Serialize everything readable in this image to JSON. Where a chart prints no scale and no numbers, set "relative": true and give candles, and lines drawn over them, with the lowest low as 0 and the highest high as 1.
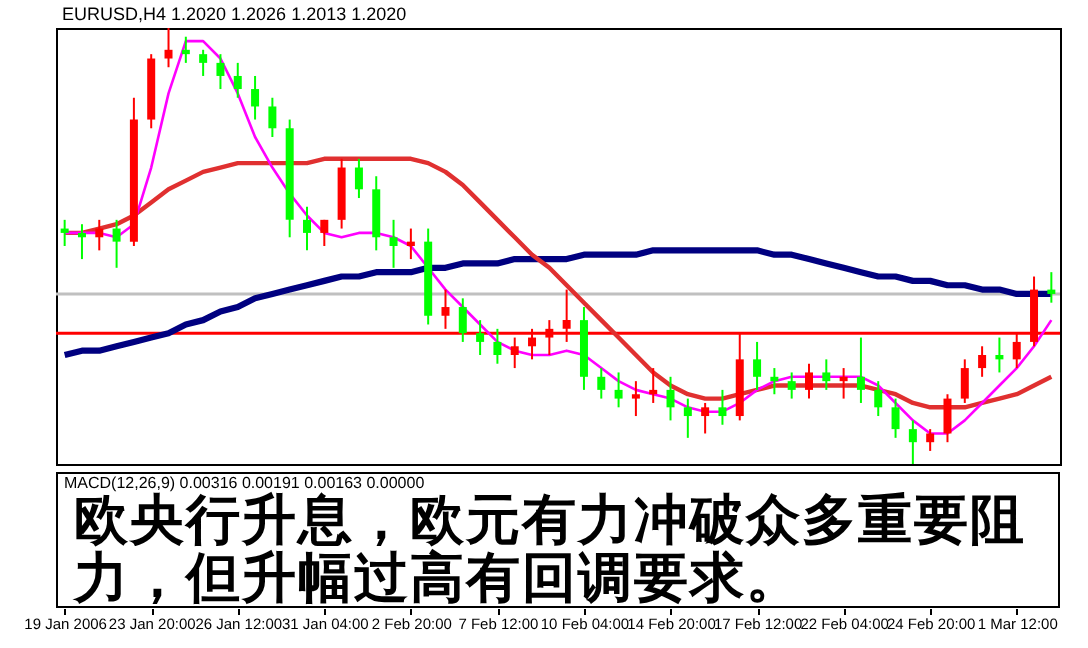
{
  "chart_data": {
    "type": "candlestick",
    "relative": true,
    "annotations": [
      "EURUSD,H4  1.2020 1.2026 1.2013 1.2020",
      "MACD(12,26,9) 0.00316 0.00191 0.00163 0.00000",
      "欧央行升息，欧元有力冲破众多重要阻力，但升幅过高有回调要求。"
    ],
    "categories": [
      "19 Jan 2006",
      null,
      null,
      null,
      null,
      "23 Jan 20:00",
      null,
      null,
      null,
      null,
      "26 Jan 12:00",
      null,
      null,
      null,
      null,
      "31 Jan 04:00",
      null,
      null,
      null,
      null,
      "2 Feb 20:00",
      null,
      null,
      null,
      null,
      "7 Feb 12:00",
      null,
      null,
      null,
      null,
      "10 Feb 04:00",
      null,
      null,
      null,
      null,
      "14 Feb 20:00",
      null,
      null,
      null,
      null,
      "17 Feb 12:00",
      null,
      null,
      null,
      null,
      "22 Feb 04:00",
      null,
      null,
      null,
      null,
      "24 Feb 20:00",
      null,
      null,
      null,
      null,
      "1 Mar 12:00",
      null,
      null
    ],
    "ohlc": [
      [
        0.54,
        0.56,
        0.5,
        0.53
      ],
      [
        0.53,
        0.55,
        0.47,
        0.52
      ],
      [
        0.52,
        0.56,
        0.49,
        0.54
      ],
      [
        0.54,
        0.56,
        0.45,
        0.51
      ],
      [
        0.51,
        0.84,
        0.5,
        0.79
      ],
      [
        0.79,
        0.94,
        0.77,
        0.93
      ],
      [
        0.93,
        1.0,
        0.91,
        0.95
      ],
      [
        0.95,
        0.98,
        0.92,
        0.94
      ],
      [
        0.94,
        0.95,
        0.89,
        0.92
      ],
      [
        0.92,
        0.94,
        0.86,
        0.89
      ],
      [
        0.89,
        0.92,
        0.84,
        0.86
      ],
      [
        0.86,
        0.89,
        0.79,
        0.82
      ],
      [
        0.82,
        0.84,
        0.75,
        0.77
      ],
      [
        0.77,
        0.79,
        0.52,
        0.56
      ],
      [
        0.56,
        0.59,
        0.49,
        0.53
      ],
      [
        0.53,
        0.56,
        0.5,
        0.56
      ],
      [
        0.56,
        0.7,
        0.54,
        0.68
      ],
      [
        0.68,
        0.7,
        0.61,
        0.63
      ],
      [
        0.63,
        0.66,
        0.49,
        0.52
      ],
      [
        0.52,
        0.56,
        0.45,
        0.5
      ],
      [
        0.5,
        0.54,
        0.47,
        0.51
      ],
      [
        0.51,
        0.54,
        0.32,
        0.34
      ],
      [
        0.34,
        0.4,
        0.31,
        0.36
      ],
      [
        0.36,
        0.38,
        0.28,
        0.3
      ],
      [
        0.3,
        0.33,
        0.25,
        0.28
      ],
      [
        0.28,
        0.31,
        0.23,
        0.25
      ],
      [
        0.25,
        0.29,
        0.22,
        0.27
      ],
      [
        0.27,
        0.31,
        0.24,
        0.29
      ],
      [
        0.29,
        0.33,
        0.25,
        0.31
      ],
      [
        0.31,
        0.4,
        0.28,
        0.33
      ],
      [
        0.33,
        0.36,
        0.17,
        0.2
      ],
      [
        0.2,
        0.22,
        0.15,
        0.17
      ],
      [
        0.17,
        0.21,
        0.13,
        0.15
      ],
      [
        0.15,
        0.19,
        0.11,
        0.16
      ],
      [
        0.16,
        0.22,
        0.14,
        0.17
      ],
      [
        0.17,
        0.2,
        0.1,
        0.13
      ],
      [
        0.13,
        0.15,
        0.06,
        0.11
      ],
      [
        0.11,
        0.14,
        0.07,
        0.13
      ],
      [
        0.13,
        0.17,
        0.09,
        0.11
      ],
      [
        0.11,
        0.3,
        0.1,
        0.24
      ],
      [
        0.24,
        0.28,
        0.17,
        0.2
      ],
      [
        0.2,
        0.22,
        0.16,
        0.19
      ],
      [
        0.19,
        0.21,
        0.15,
        0.17
      ],
      [
        0.17,
        0.23,
        0.15,
        0.21
      ],
      [
        0.21,
        0.24,
        0.17,
        0.19
      ],
      [
        0.19,
        0.22,
        0.15,
        0.2
      ],
      [
        0.2,
        0.29,
        0.14,
        0.17
      ],
      [
        0.17,
        0.19,
        0.11,
        0.13
      ],
      [
        0.13,
        0.15,
        0.06,
        0.08
      ],
      [
        0.08,
        0.1,
        0.0,
        0.05
      ],
      [
        0.05,
        0.08,
        0.03,
        0.07
      ],
      [
        0.07,
        0.16,
        0.05,
        0.15
      ],
      [
        0.15,
        0.24,
        0.14,
        0.22
      ],
      [
        0.22,
        0.27,
        0.2,
        0.25
      ],
      [
        0.25,
        0.29,
        0.21,
        0.24
      ],
      [
        0.24,
        0.3,
        0.22,
        0.28
      ],
      [
        0.28,
        0.43,
        0.27,
        0.4
      ],
      [
        0.4,
        0.44,
        0.37,
        0.39
      ]
    ],
    "colors": [
      "#00ff00",
      "#00ff00",
      "#ff0000",
      "#00ff00",
      "#ff0000",
      "#ff0000",
      "#ff0000",
      "#00ff00",
      "#00ff00",
      "#00ff00",
      "#00ff00",
      "#00ff00",
      "#00ff00",
      "#00ff00",
      "#00ff00",
      "#ff0000",
      "#ff0000",
      "#00ff00",
      "#00ff00",
      "#00ff00",
      "#ff0000",
      "#00ff00",
      "#ff0000",
      "#00ff00",
      "#00ff00",
      "#00ff00",
      "#ff0000",
      "#ff0000",
      "#ff0000",
      "#ff0000",
      "#00ff00",
      "#00ff00",
      "#00ff00",
      "#ff0000",
      "#ff0000",
      "#00ff00",
      "#00ff00",
      "#ff0000",
      "#00ff00",
      "#ff0000",
      "#00ff00",
      "#00ff00",
      "#00ff00",
      "#ff0000",
      "#00ff00",
      "#ff0000",
      "#00ff00",
      "#00ff00",
      "#00ff00",
      "#00ff00",
      "#ff0000",
      "#ff0000",
      "#ff0000",
      "#ff0000",
      "#00ff00",
      "#ff0000",
      "#ff0000",
      "#00ff00"
    ],
    "series": [
      {
        "type": "line",
        "color": "#000080",
        "values": [
          0.25,
          0.26,
          0.26,
          0.27,
          0.28,
          0.29,
          0.3,
          0.32,
          0.33,
          0.35,
          0.36,
          0.38,
          0.39,
          0.4,
          0.41,
          0.42,
          0.43,
          0.43,
          0.44,
          0.44,
          0.44,
          0.45,
          0.45,
          0.46,
          0.46,
          0.46,
          0.47,
          0.47,
          0.47,
          0.47,
          0.48,
          0.48,
          0.48,
          0.48,
          0.49,
          0.49,
          0.49,
          0.49,
          0.49,
          0.49,
          0.49,
          0.48,
          0.48,
          0.47,
          0.46,
          0.45,
          0.44,
          0.43,
          0.43,
          0.42,
          0.42,
          0.41,
          0.41,
          0.4,
          0.4,
          0.39,
          0.39,
          0.39
        ]
      },
      {
        "type": "line",
        "color": "#e03030",
        "values": [
          0.53,
          0.53,
          0.54,
          0.55,
          0.57,
          0.6,
          0.63,
          0.65,
          0.67,
          0.68,
          0.69,
          0.69,
          0.69,
          0.69,
          0.69,
          0.7,
          0.7,
          0.7,
          0.7,
          0.7,
          0.7,
          0.69,
          0.67,
          0.64,
          0.6,
          0.56,
          0.52,
          0.48,
          0.45,
          0.41,
          0.37,
          0.33,
          0.29,
          0.25,
          0.21,
          0.18,
          0.16,
          0.15,
          0.15,
          0.16,
          0.17,
          0.18,
          0.18,
          0.18,
          0.18,
          0.18,
          0.18,
          0.17,
          0.16,
          0.14,
          0.13,
          0.13,
          0.13,
          0.14,
          0.15,
          0.16,
          0.18,
          0.2
        ]
      },
      {
        "type": "line",
        "color": "#ff00ff",
        "values": [
          0.53,
          0.53,
          0.53,
          0.52,
          0.55,
          0.68,
          0.85,
          0.97,
          0.97,
          0.93,
          0.85,
          0.75,
          0.68,
          0.62,
          0.57,
          0.53,
          0.52,
          0.53,
          0.53,
          0.52,
          0.5,
          0.45,
          0.4,
          0.36,
          0.32,
          0.28,
          0.26,
          0.25,
          0.25,
          0.26,
          0.25,
          0.22,
          0.19,
          0.17,
          0.16,
          0.15,
          0.13,
          0.12,
          0.12,
          0.14,
          0.17,
          0.19,
          0.2,
          0.2,
          0.2,
          0.2,
          0.2,
          0.18,
          0.14,
          0.1,
          0.07,
          0.07,
          0.1,
          0.14,
          0.18,
          0.22,
          0.27,
          0.33
        ]
      }
    ],
    "ref_lines": [
      {
        "axis": "y",
        "value": 0.39,
        "color": "#c0c0c0"
      },
      {
        "axis": "y",
        "value": 0.3,
        "color": "#ff0000"
      }
    ]
  }
}
